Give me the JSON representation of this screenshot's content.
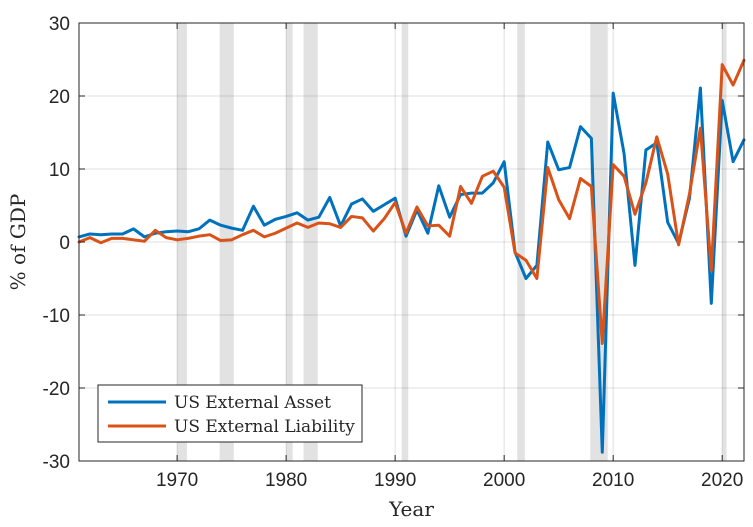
{
  "chart_data": {
    "type": "line",
    "xlabel": "Year",
    "ylabel": "% of GDP",
    "xlim": [
      1961,
      2022
    ],
    "ylim": [
      -30,
      30
    ],
    "xticks": [
      1970,
      1980,
      1990,
      2000,
      2010,
      2020
    ],
    "yticks": [
      30,
      20,
      10,
      0,
      -10,
      -20,
      -30
    ],
    "grid": true,
    "legend_position": "bottom-left",
    "recession_shading_color": "#e2e2e2",
    "recessions": [
      [
        1970.0,
        1970.9
      ],
      [
        1973.9,
        1975.2
      ],
      [
        1980.0,
        1980.6
      ],
      [
        1981.6,
        1982.9
      ],
      [
        1990.6,
        1991.2
      ],
      [
        2001.2,
        2001.9
      ],
      [
        2007.9,
        2009.5
      ],
      [
        2020.0,
        2020.4
      ]
    ],
    "series": [
      {
        "name": "US External Asset",
        "color": "#0072BD",
        "x": [
          1961,
          1962,
          1963,
          1964,
          1965,
          1966,
          1967,
          1968,
          1969,
          1970,
          1971,
          1972,
          1973,
          1974,
          1975,
          1976,
          1977,
          1978,
          1979,
          1980,
          1981,
          1982,
          1983,
          1984,
          1985,
          1986,
          1987,
          1988,
          1989,
          1990,
          1991,
          1992,
          1993,
          1994,
          1995,
          1996,
          1997,
          1998,
          1999,
          2000,
          2001,
          2002,
          2003,
          2004,
          2005,
          2006,
          2007,
          2008,
          2009,
          2010,
          2011,
          2012,
          2013,
          2014,
          2015,
          2016,
          2017,
          2018,
          2019,
          2020,
          2021,
          2022
        ],
        "values": [
          0.7,
          1.1,
          1.0,
          1.1,
          1.1,
          1.8,
          0.7,
          1.2,
          1.4,
          1.5,
          1.4,
          1.8,
          3.0,
          2.3,
          1.9,
          1.6,
          4.9,
          2.3,
          3.1,
          3.5,
          4.0,
          3.0,
          3.4,
          6.1,
          2.2,
          5.2,
          5.9,
          4.2,
          5.1,
          6.0,
          0.8,
          4.4,
          1.2,
          7.7,
          3.4,
          6.5,
          6.7,
          6.7,
          8.1,
          11.0,
          -1.4,
          -5.0,
          -3.2,
          13.7,
          9.9,
          10.2,
          15.8,
          14.2,
          -28.8,
          20.4,
          12.1,
          -3.2,
          12.6,
          13.6,
          2.7,
          -0.2,
          6.0,
          21.1,
          -8.4,
          19.4,
          11.0,
          14.0
        ]
      },
      {
        "name": "US External Liability",
        "color": "#D95319",
        "x": [
          1961,
          1962,
          1963,
          1964,
          1965,
          1966,
          1967,
          1968,
          1969,
          1970,
          1971,
          1972,
          1973,
          1974,
          1975,
          1976,
          1977,
          1978,
          1979,
          1980,
          1981,
          1982,
          1983,
          1984,
          1985,
          1986,
          1987,
          1988,
          1989,
          1990,
          1991,
          1992,
          1993,
          1994,
          1995,
          1996,
          1997,
          1998,
          1999,
          2000,
          2001,
          2002,
          2003,
          2004,
          2005,
          2006,
          2007,
          2008,
          2009,
          2010,
          2011,
          2012,
          2013,
          2014,
          2015,
          2016,
          2017,
          2018,
          2019,
          2020,
          2021,
          2022
        ],
        "values": [
          0.0,
          0.6,
          -0.1,
          0.5,
          0.5,
          0.3,
          0.1,
          1.6,
          0.6,
          0.3,
          0.5,
          0.8,
          1.0,
          0.2,
          0.3,
          1.0,
          1.6,
          0.7,
          1.2,
          1.9,
          2.6,
          2.0,
          2.6,
          2.5,
          2.0,
          3.5,
          3.3,
          1.5,
          3.2,
          5.4,
          1.2,
          4.8,
          2.2,
          2.3,
          0.8,
          7.6,
          5.3,
          9.0,
          9.7,
          7.5,
          -1.5,
          -2.5,
          -5.0,
          10.2,
          5.8,
          3.2,
          8.7,
          7.6,
          -13.9,
          10.6,
          9.0,
          3.8,
          8.1,
          14.4,
          9.3,
          -0.4,
          6.6,
          15.6,
          -3.9,
          24.3,
          21.5,
          24.9
        ]
      }
    ]
  }
}
